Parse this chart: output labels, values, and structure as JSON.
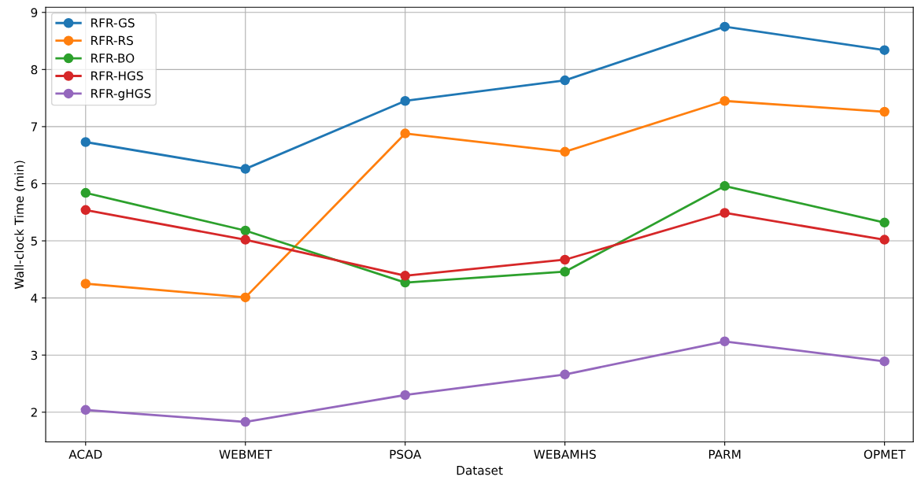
{
  "chart_data": {
    "type": "line",
    "xlabel": "Dataset",
    "ylabel": "Wall-clock Time (min)",
    "categories": [
      "ACAD",
      "WEBMET",
      "PSOA",
      "WEBAMHS",
      "PARM",
      "OPMET"
    ],
    "series": [
      {
        "name": "RFR-GS",
        "color": "#1f77b4",
        "values": [
          6.73,
          6.26,
          7.45,
          7.81,
          8.75,
          8.34
        ]
      },
      {
        "name": "RFR-RS",
        "color": "#ff7f0e",
        "values": [
          4.25,
          4.01,
          6.88,
          6.56,
          7.45,
          7.26
        ]
      },
      {
        "name": "RFR-BO",
        "color": "#2ca02c",
        "values": [
          5.84,
          5.18,
          4.27,
          4.46,
          5.96,
          5.32
        ]
      },
      {
        "name": "RFR-HGS",
        "color": "#d62728",
        "values": [
          5.54,
          5.02,
          4.39,
          4.67,
          5.49,
          5.02
        ]
      },
      {
        "name": "RFR-gHGS",
        "color": "#9467bd",
        "values": [
          2.04,
          1.83,
          2.3,
          2.66,
          3.24,
          2.89
        ]
      }
    ],
    "ylim": [
      1.48,
      9.09
    ],
    "yticks": [
      2,
      3,
      4,
      5,
      6,
      7,
      8,
      9
    ],
    "grid": true,
    "legend": "top left",
    "marker": "circle",
    "line_style": "solid"
  }
}
